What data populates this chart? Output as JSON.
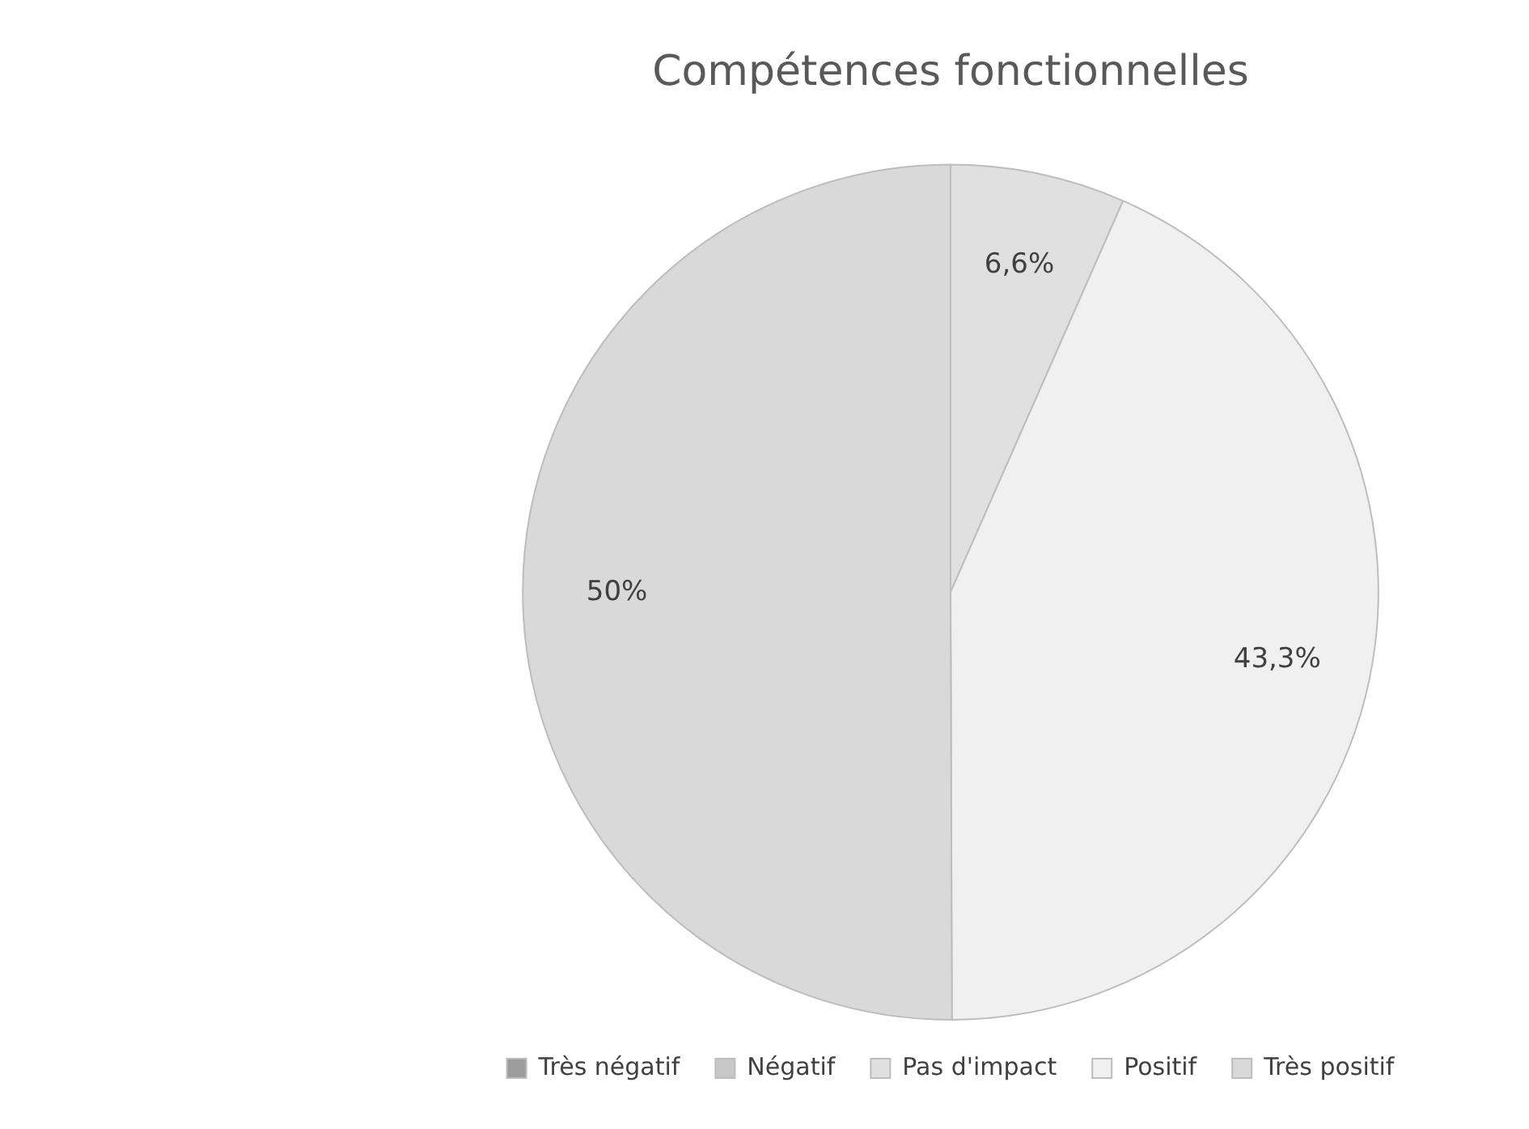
{
  "chart_data": {
    "type": "pie",
    "title": "Compétences fonctionnelles",
    "categories": [
      "Très négatif",
      "Négatif",
      "Pas d'impact",
      "Positif",
      "Très positif"
    ],
    "values": [
      0,
      0,
      6.6,
      43.3,
      50
    ],
    "colors": [
      "#9c9c9c",
      "#c8c8c8",
      "#e0e0e0",
      "#f0f0f0",
      "#d9d9d9"
    ],
    "value_labels": [
      null,
      null,
      "6,6%",
      "43,3%",
      "50%"
    ],
    "legend": "bottom"
  }
}
